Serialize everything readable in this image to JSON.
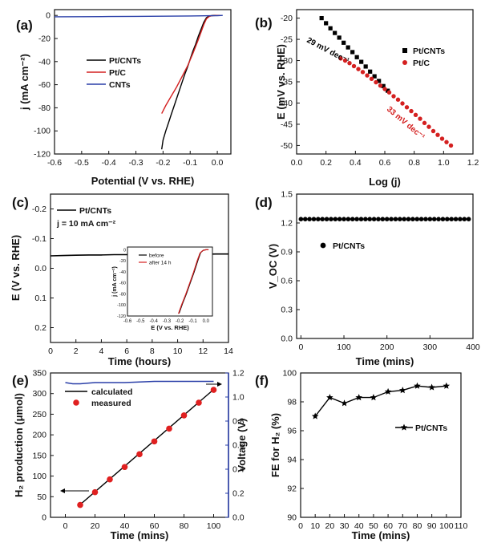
{
  "chart_data": [
    {
      "panel": "(a)",
      "type": "line",
      "xlabel": "Potential (V vs. RHE)",
      "ylabel": "j (mA cm⁻²)",
      "xlim": [
        -0.6,
        0.05
      ],
      "ylim": [
        -120,
        5
      ],
      "xticks": [
        "-0.6",
        "-0.5",
        "-0.4",
        "-0.3",
        "-0.2",
        "-0.1",
        "0.0"
      ],
      "yticks": [
        "0",
        "-20",
        "-40",
        "-60",
        "-80",
        "-100",
        "-120"
      ],
      "legend_position": "center",
      "series": [
        {
          "name": "Pt/CNTs",
          "color": "#000000",
          "x": [
            -0.205,
            -0.2,
            -0.19,
            -0.18,
            -0.17,
            -0.16,
            -0.15,
            -0.14,
            -0.13,
            -0.12,
            -0.11,
            -0.1,
            -0.09,
            -0.08,
            -0.07,
            -0.06,
            -0.05,
            -0.04,
            -0.03,
            -0.02,
            -0.01,
            0.0,
            0.01
          ],
          "y": [
            -116,
            -108,
            -100,
            -93,
            -86,
            -79,
            -72,
            -65,
            -58,
            -51,
            -45,
            -38,
            -31,
            -25,
            -18,
            -12,
            -6,
            -2,
            -0.5,
            -0.2,
            0,
            0,
            0
          ]
        },
        {
          "name": "Pt/C",
          "color": "#d42020",
          "x": [
            -0.205,
            -0.19,
            -0.17,
            -0.15,
            -0.13,
            -0.11,
            -0.09,
            -0.07,
            -0.05,
            -0.04,
            -0.03,
            -0.02,
            0.0,
            0.01
          ],
          "y": [
            -85,
            -78,
            -70,
            -62,
            -53,
            -44,
            -33,
            -21,
            -8,
            -3,
            -1,
            -0.3,
            0,
            0
          ]
        },
        {
          "name": "CNTs",
          "color": "#2a3fa8",
          "x": [
            -0.6,
            -0.5,
            -0.4,
            -0.3,
            -0.2,
            -0.1,
            0.0,
            0.02
          ],
          "y": [
            -1.2,
            -1.1,
            -1.0,
            -0.8,
            -0.7,
            -0.5,
            -0.2,
            0
          ]
        }
      ]
    },
    {
      "panel": "(b)",
      "type": "scatter",
      "xlabel": "Log (j)",
      "ylabel": "E (mV vs. RHE)",
      "xlim": [
        0.0,
        1.2
      ],
      "ylim": [
        -52,
        -18
      ],
      "xticks": [
        "0.0",
        "0.2",
        "0.4",
        "0.6",
        "0.8",
        "1.0",
        "1.2"
      ],
      "yticks": [
        "-20",
        "-25",
        "-30",
        "-35",
        "-40",
        "-45",
        "-50"
      ],
      "legend_position": "top-right",
      "annotations": [
        {
          "text": "29 mV dec⁻¹",
          "color": "#000000"
        },
        {
          "text": "33 mV dec⁻¹",
          "color": "#d42020"
        }
      ],
      "series": [
        {
          "name": "Pt/CNTs",
          "color": "#000000",
          "marker": "square",
          "x": [
            0.17,
            0.2,
            0.23,
            0.26,
            0.29,
            0.32,
            0.35,
            0.38,
            0.41,
            0.44,
            0.47,
            0.5,
            0.53,
            0.56,
            0.59,
            0.62
          ],
          "y": [
            -20,
            -21.2,
            -22.4,
            -23.5,
            -24.6,
            -25.8,
            -26.9,
            -28,
            -29.2,
            -30.3,
            -31.4,
            -32.6,
            -33.7,
            -34.8,
            -36,
            -37.1
          ]
        },
        {
          "name": "Pt/C",
          "color": "#d42020",
          "marker": "circle",
          "x": [
            0.3,
            0.33,
            0.36,
            0.39,
            0.42,
            0.45,
            0.48,
            0.51,
            0.54,
            0.57,
            0.6,
            0.63,
            0.66,
            0.69,
            0.72,
            0.75,
            0.78,
            0.81,
            0.84,
            0.87,
            0.9,
            0.93,
            0.96,
            0.99,
            1.02,
            1.05
          ],
          "y": [
            -29.5,
            -30,
            -30.6,
            -31.3,
            -32,
            -32.7,
            -33.5,
            -34.3,
            -35.1,
            -35.9,
            -36.7,
            -37.5,
            -38.4,
            -39.2,
            -40.1,
            -41,
            -41.9,
            -42.8,
            -43.7,
            -44.7,
            -45.6,
            -46.6,
            -47.5,
            -48.4,
            -49.2,
            -50
          ]
        }
      ]
    },
    {
      "panel": "(c)",
      "type": "line",
      "xlabel": "Time (hours)",
      "ylabel": "E (V vs. RHE)",
      "xlim": [
        0,
        14
      ],
      "ylim": [
        0.25,
        -0.25
      ],
      "xticks": [
        "0",
        "2",
        "4",
        "6",
        "8",
        "10",
        "12",
        "14"
      ],
      "yticks": [
        "-0.2",
        "-0.1",
        "0.0",
        "0.1",
        "0.2"
      ],
      "legend_position": "top-left",
      "series": [
        {
          "name": "Pt/CNTs",
          "color": "#000000",
          "x": [
            0,
            1,
            2,
            3,
            4,
            5,
            6,
            7,
            8,
            9,
            10,
            11,
            12,
            13,
            14
          ],
          "y": [
            -0.042,
            -0.043,
            -0.044,
            -0.045,
            -0.045,
            -0.046,
            -0.046,
            -0.046,
            -0.047,
            -0.047,
            -0.047,
            -0.048,
            -0.047,
            -0.048,
            -0.048
          ]
        }
      ],
      "note": "j = 10 mA cm⁻²",
      "inset": {
        "type": "line",
        "xlabel": "E (V vs. RHE)",
        "ylabel": "j (mA cm⁻²)",
        "xlim": [
          -0.6,
          0.05
        ],
        "ylim": [
          -120,
          5
        ],
        "xticks": [
          "-0.6",
          "-0.5",
          "-0.4",
          "-0.3",
          "-0.2",
          "-0.1",
          "0.0"
        ],
        "yticks": [
          "0",
          "-20",
          "-40",
          "-60",
          "-80",
          "-100",
          "-120"
        ],
        "series": [
          {
            "name": "before",
            "color": "#000000",
            "x": [
              -0.205,
              -0.18,
              -0.15,
              -0.12,
              -0.09,
              -0.06,
              -0.04,
              -0.02,
              0.0,
              0.02
            ],
            "y": [
              -115,
              -98,
              -80,
              -60,
              -40,
              -18,
              -5,
              -1,
              0,
              0
            ]
          },
          {
            "name": "after 14 h",
            "color": "#d42020",
            "x": [
              -0.21,
              -0.185,
              -0.155,
              -0.125,
              -0.095,
              -0.065,
              -0.045,
              -0.025,
              0.0,
              0.02
            ],
            "y": [
              -116,
              -99,
              -81,
              -61,
              -41,
              -19,
              -6,
              -1.5,
              0,
              0
            ]
          }
        ]
      }
    },
    {
      "panel": "(d)",
      "type": "scatter",
      "xlabel": "Time (mins)",
      "ylabel": "V_OC (V)",
      "xlim": [
        -10,
        400
      ],
      "ylim": [
        0.0,
        1.5
      ],
      "xticks": [
        "0",
        "100",
        "200",
        "300",
        "400"
      ],
      "yticks": [
        "0.0",
        "0.3",
        "0.6",
        "0.9",
        "1.2",
        "1.5"
      ],
      "legend_position": "center-left",
      "series": [
        {
          "name": "Pt/CNTs",
          "color": "#000000",
          "marker": "circle",
          "x": [
            0,
            10,
            20,
            30,
            40,
            50,
            60,
            70,
            80,
            90,
            100,
            110,
            120,
            130,
            140,
            150,
            160,
            170,
            180,
            190,
            200,
            210,
            220,
            230,
            240,
            250,
            260,
            270,
            280,
            290,
            300,
            310,
            320,
            330,
            340,
            350,
            360,
            370,
            380,
            390
          ],
          "y": [
            1.24,
            1.24,
            1.24,
            1.24,
            1.24,
            1.24,
            1.24,
            1.24,
            1.24,
            1.24,
            1.24,
            1.24,
            1.24,
            1.24,
            1.24,
            1.24,
            1.24,
            1.24,
            1.24,
            1.24,
            1.24,
            1.24,
            1.24,
            1.24,
            1.24,
            1.24,
            1.24,
            1.24,
            1.24,
            1.24,
            1.24,
            1.24,
            1.24,
            1.24,
            1.24,
            1.24,
            1.24,
            1.24,
            1.24,
            1.24
          ]
        }
      ]
    },
    {
      "panel": "(e)",
      "type": "line",
      "xlabel": "Time (mins)",
      "ylabel": "H₂ production (μmol)",
      "ylabel_right": "Voltage (V)",
      "xlim": [
        -10,
        110
      ],
      "ylim": [
        0,
        350
      ],
      "ylim_right": [
        0.0,
        1.2
      ],
      "xticks": [
        "0",
        "20",
        "40",
        "60",
        "80",
        "100"
      ],
      "yticks": [
        "0",
        "50",
        "100",
        "150",
        "200",
        "250",
        "300",
        "350"
      ],
      "yticks_right": [
        "0.0",
        "0.2",
        "0.4",
        "0.6",
        "0.8",
        "1.0",
        "1.2"
      ],
      "legend_position": "top-left",
      "series": [
        {
          "name": "calculated",
          "color": "#000000",
          "x": [
            10,
            100
          ],
          "y": [
            31,
            310
          ]
        },
        {
          "name": "measured",
          "color": "#e02020",
          "marker": "circle",
          "x": [
            10,
            20,
            30,
            40,
            50,
            60,
            70,
            80,
            90,
            100
          ],
          "y": [
            30,
            61,
            92,
            122,
            153,
            184,
            215,
            247,
            278,
            309
          ]
        },
        {
          "name": "Voltage",
          "axis": "right",
          "color": "#2a3fa8",
          "x": [
            0,
            5,
            10,
            20,
            40,
            60,
            80,
            100
          ],
          "y": [
            1.12,
            1.11,
            1.11,
            1.12,
            1.12,
            1.13,
            1.13,
            1.13
          ]
        }
      ]
    },
    {
      "panel": "(f)",
      "type": "line",
      "xlabel": "Time (mins)",
      "ylabel": "FE for H₂ (%)",
      "xlim": [
        0,
        110
      ],
      "ylim": [
        90,
        100
      ],
      "xticks": [
        "0",
        "10",
        "20",
        "30",
        "40",
        "50",
        "60",
        "70",
        "80",
        "90",
        "100",
        "110"
      ],
      "yticks": [
        "90",
        "92",
        "94",
        "96",
        "98",
        "100"
      ],
      "legend_position": "center-right",
      "series": [
        {
          "name": "Pt/CNTs",
          "color": "#000000",
          "marker": "star",
          "x": [
            10,
            20,
            30,
            40,
            50,
            60,
            70,
            80,
            90,
            100
          ],
          "y": [
            97.0,
            98.3,
            97.9,
            98.3,
            98.3,
            98.7,
            98.8,
            99.1,
            99.0,
            99.1
          ]
        }
      ]
    }
  ]
}
